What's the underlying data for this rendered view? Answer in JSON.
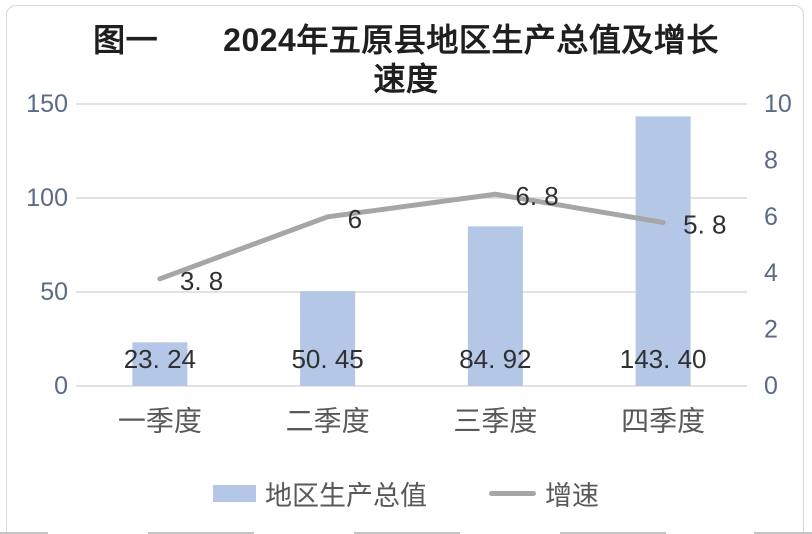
{
  "chart_data": {
    "type": "combo-bar-line",
    "title": "图一　　2024年五原县地区生产总值及增长速度",
    "title_lines": [
      "图一　　2024年五原县地区生产总值及增长",
      "速度"
    ],
    "categories": [
      "一季度",
      "二季度",
      "三季度",
      "四季度"
    ],
    "series": [
      {
        "name": "地区生产总值",
        "type": "bar",
        "axis": "left",
        "values": [
          23.24,
          50.45,
          84.92,
          143.4
        ],
        "labels": [
          "23. 24",
          "50. 45",
          "84. 92",
          "143. 40"
        ],
        "color": "#b4c7e7"
      },
      {
        "name": "增速",
        "type": "line",
        "axis": "right",
        "values": [
          3.8,
          6,
          6.8,
          5.8
        ],
        "labels": [
          "3. 8",
          "6",
          "6. 8",
          "5. 8"
        ],
        "color": "#a6a6a6"
      }
    ],
    "left_axis": {
      "min": 0,
      "max": 150,
      "ticks": [
        0,
        50,
        100,
        150
      ]
    },
    "right_axis": {
      "min": 0,
      "max": 10,
      "ticks": [
        0,
        2,
        4,
        6,
        8,
        10
      ]
    },
    "grid": "horizontal gridlines at left-axis 0/50/100/150",
    "legend_position": "bottom",
    "xlabel": "",
    "ylabel": ""
  },
  "legend": {
    "bar_label": "地区生产总值",
    "line_label": "增速"
  },
  "colors": {
    "bar": "#b4c7e7",
    "line": "#a6a6a6",
    "grid": "#d9d9d9",
    "border": "#d9d9d9",
    "axis_label": "#5a6a88",
    "text": "#595959",
    "value_label": "#303030",
    "title": "#1f1f1f",
    "dash": "#c4c4c4"
  }
}
